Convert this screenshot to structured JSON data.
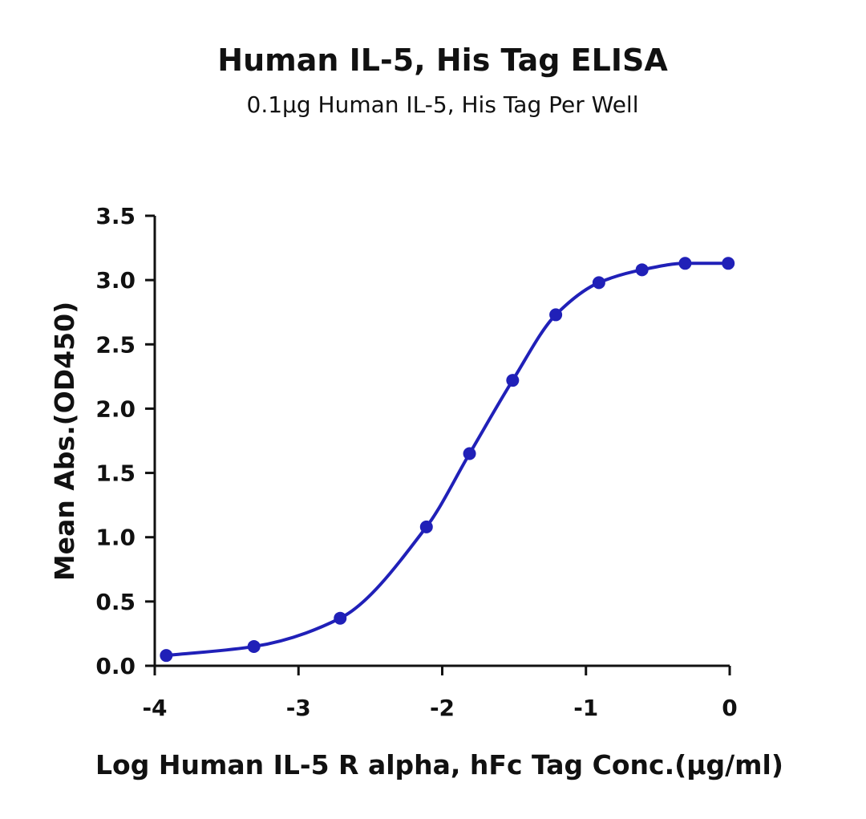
{
  "chart_data": {
    "type": "scatter",
    "title": "Human IL-5, His Tag ELISA",
    "subtitle": "0.1µg Human IL-5, His Tag Per Well",
    "x_label": "Log Human IL-5 R alpha, hFc Tag Conc.(µg/ml)",
    "y_label": "Mean Abs.(OD450)",
    "x": [
      -3.92,
      -3.31,
      -2.71,
      -2.11,
      -1.81,
      -1.51,
      -1.21,
      -0.91,
      -0.61,
      -0.31,
      -0.01
    ],
    "values": [
      0.08,
      0.15,
      0.37,
      1.08,
      1.65,
      2.22,
      2.73,
      2.98,
      3.08,
      3.13,
      3.13
    ],
    "color": "#2020b8",
    "fit_line": true,
    "xlim": [
      -4,
      0
    ],
    "xticks": [
      -4,
      -3,
      -2,
      -1,
      0
    ],
    "ylim": [
      0,
      3.5
    ],
    "yticks": [
      {
        "value": 0,
        "label": "0.0"
      },
      0.5,
      {
        "value": 1,
        "label": "1.0"
      },
      1.5,
      {
        "value": 2,
        "label": "2.0"
      },
      2.5,
      {
        "value": 3,
        "label": "3.0"
      },
      3.5
    ]
  }
}
